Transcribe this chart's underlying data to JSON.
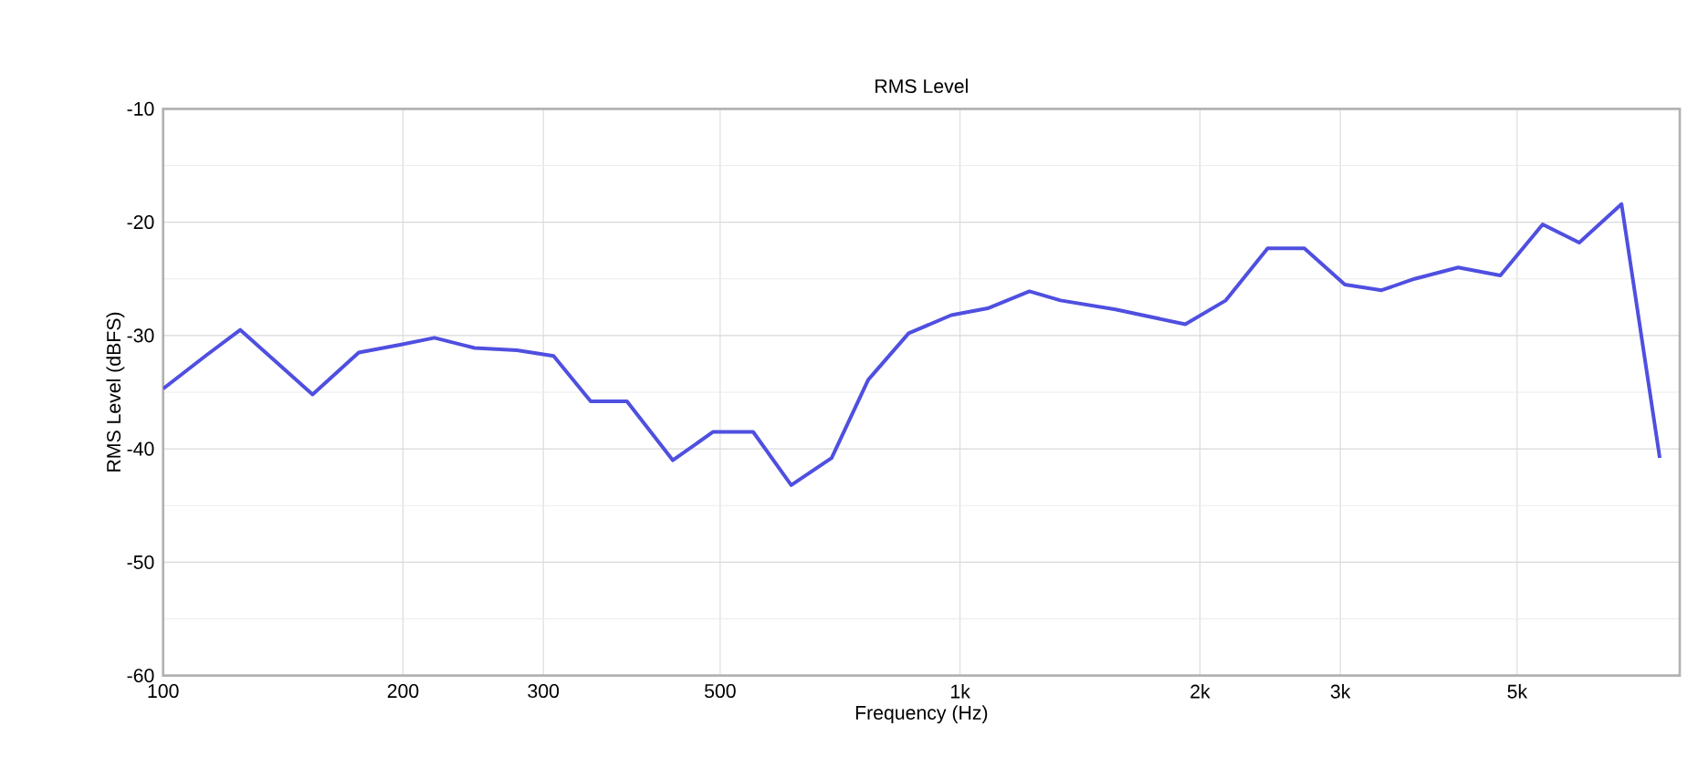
{
  "chart_data": {
    "type": "line",
    "title": "RMS Level",
    "xlabel": "Frequency (Hz)",
    "ylabel": "RMS Level (dBFS)",
    "log": "x",
    "grid": true,
    "marker": "none",
    "line_style": "solid",
    "xlim": [
      100,
      8000
    ],
    "ylim": [
      -60,
      -10
    ],
    "xticks": [
      {
        "value": 100,
        "label": "100"
      },
      {
        "value": 200,
        "label": "200"
      },
      {
        "value": 300,
        "label": "300"
      },
      {
        "value": 500,
        "label": "500"
      },
      {
        "value": 1000,
        "label": "1k"
      },
      {
        "value": 2000,
        "label": "2k"
      },
      {
        "value": 3000,
        "label": "3k"
      },
      {
        "value": 5000,
        "label": "5k"
      }
    ],
    "yticks": [
      -60,
      -50,
      -40,
      -30,
      -20,
      -10
    ],
    "series": [
      {
        "color": "#4f4fe0",
        "x": [
          100,
          113,
          125,
          154,
          176,
          199,
          219,
          246,
          278,
          309,
          344,
          382,
          436,
          490,
          550,
          614,
          690,
          767,
          862,
          975,
          1083,
          1222,
          1337,
          1567,
          1917,
          2155,
          2432,
          2704,
          3040,
          3380,
          3718,
          4217,
          4764,
          5383,
          5984,
          6761,
          7551
        ],
        "values": [
          -34.7,
          -31.8,
          -29.5,
          -35.2,
          -31.5,
          -30.8,
          -30.2,
          -31.1,
          -31.3,
          -31.8,
          -35.8,
          -35.8,
          -41.0,
          -38.5,
          -38.5,
          -43.2,
          -40.8,
          -33.9,
          -29.8,
          -28.2,
          -27.6,
          -26.1,
          -26.9,
          -27.7,
          -29.0,
          -26.9,
          -22.3,
          -22.3,
          -25.5,
          -26.0,
          -25.0,
          -24.0,
          -24.7,
          -20.2,
          -21.8,
          -18.4,
          -40.8
        ]
      }
    ]
  }
}
